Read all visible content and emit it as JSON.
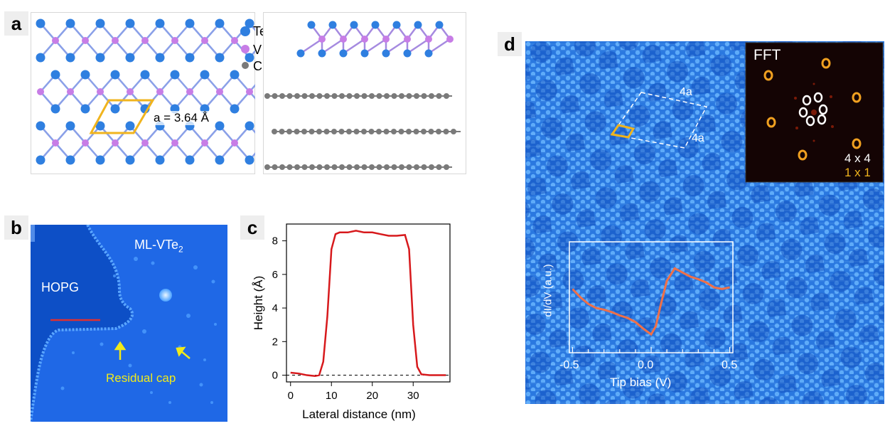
{
  "panels": {
    "a": {
      "label": "a",
      "legend": [
        {
          "symbol": "Te",
          "color": "#2f7fe0"
        },
        {
          "symbol": "V",
          "color": "#c77de6"
        },
        {
          "symbol": "C",
          "color": "#7a7a7a"
        }
      ],
      "lattice_text": "a = 3.64 Å"
    },
    "b": {
      "label": "b",
      "hopg": "HOPG",
      "ml_prefix": "ML-VTe",
      "ml_sub": "2",
      "residual": "Residual cap"
    },
    "c": {
      "label": "c"
    },
    "d": {
      "label": "d",
      "supercell_top": "4a",
      "supercell_right": "4a",
      "fft_title": "FFT",
      "fft_4x4": "4 x 4",
      "fft_1x1": "1 x 1",
      "inset_ylabel": "dI/dV (a.u.)",
      "inset_xlabel": "Tip bias (V)",
      "inset_ticks": [
        "-0.5",
        "0.0",
        "0.5"
      ]
    }
  },
  "chart_data": [
    {
      "type": "line",
      "panel": "c",
      "xlabel": "Lateral distance (nm)",
      "ylabel": "Height (Å)",
      "xlim": [
        -1,
        39
      ],
      "ylim": [
        -0.4,
        9
      ],
      "xticks": [
        "0",
        "10",
        "20",
        "30"
      ],
      "yticks": [
        "0",
        "2",
        "4",
        "6",
        "8"
      ],
      "series": [
        {
          "color": "#d7191c",
          "x": [
            0,
            2,
            4,
            6,
            7,
            8,
            9,
            10,
            11,
            12,
            14,
            16,
            18,
            20,
            22,
            24,
            26,
            28,
            29,
            30,
            31,
            32,
            34,
            36,
            38
          ],
          "y": [
            0.15,
            0.1,
            0.0,
            -0.05,
            0.0,
            0.8,
            3.5,
            7.5,
            8.4,
            8.5,
            8.5,
            8.6,
            8.5,
            8.5,
            8.4,
            8.3,
            8.3,
            8.35,
            7.5,
            3.0,
            0.5,
            0.05,
            0.0,
            0.0,
            0.0
          ]
        }
      ],
      "reference_line": 0
    },
    {
      "type": "line",
      "panel": "d-inset",
      "xlabel": "Tip bias (V)",
      "ylabel": "dI/dV (a.u.)",
      "xlim": [
        -0.52,
        0.52
      ],
      "xticks": [
        "-0.5",
        "0.0",
        "0.5"
      ],
      "series": [
        {
          "color": "#f07048",
          "x": [
            -0.5,
            -0.45,
            -0.4,
            -0.35,
            -0.3,
            -0.25,
            -0.2,
            -0.15,
            -0.1,
            -0.05,
            0.0,
            0.03,
            0.06,
            0.1,
            0.15,
            0.2,
            0.25,
            0.3,
            0.35,
            0.4,
            0.45,
            0.5
          ],
          "y": [
            0.6,
            0.5,
            0.42,
            0.37,
            0.35,
            0.32,
            0.28,
            0.25,
            0.2,
            0.12,
            0.05,
            0.15,
            0.4,
            0.7,
            0.85,
            0.8,
            0.75,
            0.72,
            0.68,
            0.62,
            0.6,
            0.62
          ]
        }
      ]
    }
  ]
}
